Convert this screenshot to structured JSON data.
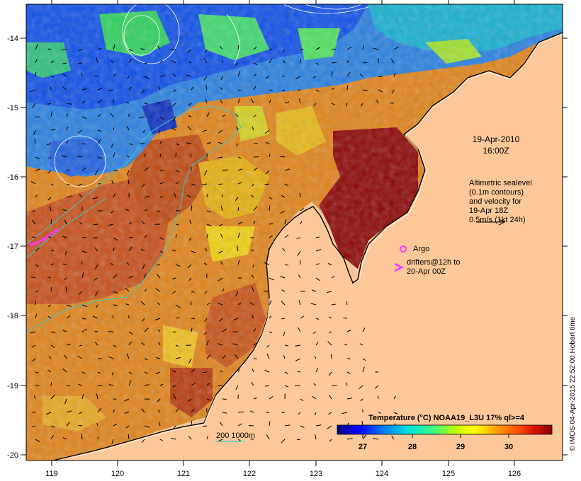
{
  "map": {
    "title_date": "19-Apr-2010",
    "title_time": "16:00Z",
    "altimetry_note": [
      "Altimetric sealevel",
      "(0.1m contours)",
      "and velocity for",
      "19-Apr 18Z",
      "0.5m/s (1kt 24h)"
    ],
    "argo_label": "Argo",
    "drifter_label": [
      "drifters@12h to",
      "20-Apr 00Z"
    ],
    "depth_label": "200  1000m",
    "credit": "© IMOS 04-Apr-2015 22:52:00 Hobart time",
    "lon_ticks": [
      "119",
      "120",
      "121",
      "122",
      "123",
      "124",
      "125",
      "126"
    ],
    "lat_ticks": [
      "-14",
      "-15",
      "-16",
      "-17",
      "-18",
      "-19",
      "-20"
    ]
  },
  "colorbar": {
    "title": "Temperature (°C) NOAA19_L3U 17% ql>=4",
    "ticks": [
      "27",
      "28",
      "29",
      "30"
    ]
  },
  "colors": {
    "land": "#fcc899",
    "drifter": "#ff33ff",
    "contour": "#ffffff",
    "isobath": "#33cccc"
  }
}
